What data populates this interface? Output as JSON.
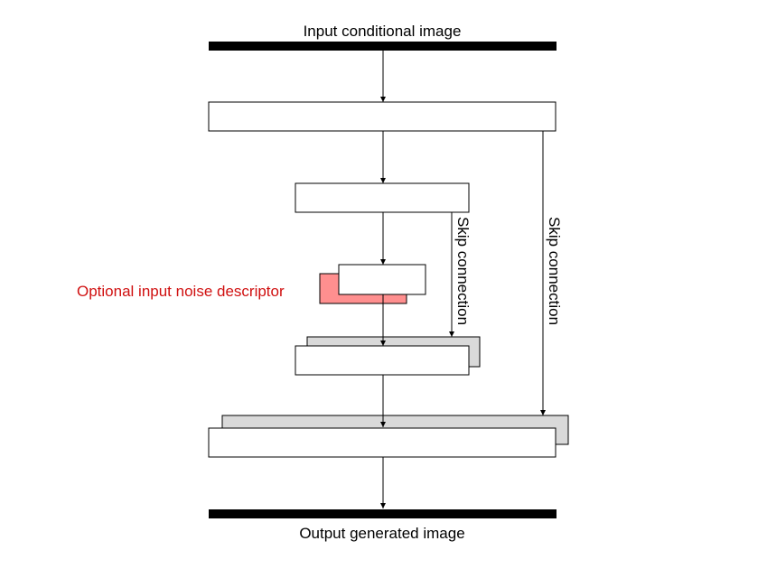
{
  "labels": {
    "input": "Input conditional image",
    "output": "Output generated image",
    "noise": "Optional input noise descriptor",
    "skip_inner": "Skip connection",
    "skip_outer": "Skip connection"
  },
  "colors": {
    "line": "#000000",
    "block_fill": "#ffffff",
    "shadow_fill": "#d9d9d9",
    "noise_fill": "#ff8f8f",
    "noise_text": "#d01010"
  }
}
